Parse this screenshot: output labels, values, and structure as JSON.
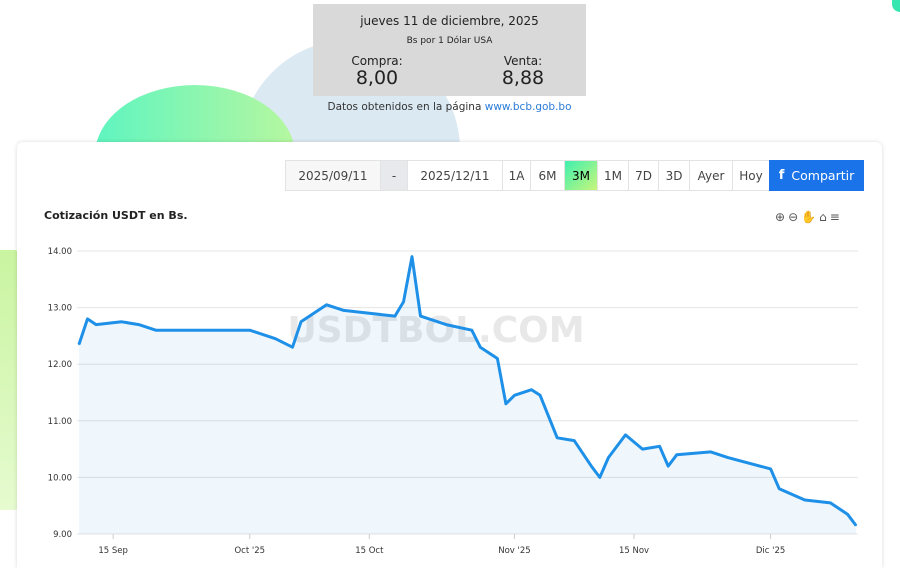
{
  "rate_box": {
    "date": "jueves 11 de diciembre, 2025",
    "subtitle": "Bs por 1 Dólar USA",
    "buy_label": "Compra:",
    "buy_value": "8,00",
    "sell_label": "Venta:",
    "sell_value": "8,88"
  },
  "source": {
    "text": "Datos obtenidos en la página ",
    "link": "www.bcb.gob.bo"
  },
  "toolbar": {
    "date_from": "2025/09/11",
    "separator": "-",
    "date_to": "2025/12/11",
    "ranges": [
      "1A",
      "6M",
      "3M",
      "1M",
      "7D",
      "3D",
      "Ayer",
      "Hoy"
    ],
    "active_range": "3M",
    "share_label": "Compartir",
    "share_icon": "facebook-icon",
    "colors": {
      "active": "#3ff0b0",
      "share": "#1a73e8"
    }
  },
  "chart_tools": [
    "zoom-in-icon",
    "zoom-out-icon",
    "pan-hand-icon",
    "home-icon",
    "menu-icon"
  ],
  "watermark": "USDTBOL.COM",
  "chart_data": {
    "type": "area",
    "title": "Cotización USDT en Bs.",
    "xlabel": "",
    "ylabel": "",
    "ylim": [
      9,
      14
    ],
    "yticks": [
      "9.00",
      "10.00",
      "11.00",
      "12.00",
      "13.00",
      "14.00"
    ],
    "xlim": [
      "2025-09-11",
      "2025-12-11"
    ],
    "xticks": [
      {
        "date": "2025-09-15",
        "label": "15 Sep"
      },
      {
        "date": "2025-10-01",
        "label": "Oct '25"
      },
      {
        "date": "2025-10-15",
        "label": "15 Oct"
      },
      {
        "date": "2025-11-01",
        "label": "Nov '25"
      },
      {
        "date": "2025-11-15",
        "label": "15 Nov"
      },
      {
        "date": "2025-12-01",
        "label": "Dic '25"
      }
    ],
    "grid": true,
    "line_color": "#1e90e8",
    "points": [
      [
        "2025-09-11",
        12.35
      ],
      [
        "2025-09-12",
        12.8
      ],
      [
        "2025-09-13",
        12.7
      ],
      [
        "2025-09-16",
        12.75
      ],
      [
        "2025-09-18",
        12.7
      ],
      [
        "2025-09-20",
        12.6
      ],
      [
        "2025-09-25",
        12.6
      ],
      [
        "2025-10-01",
        12.6
      ],
      [
        "2025-10-04",
        12.45
      ],
      [
        "2025-10-06",
        12.3
      ],
      [
        "2025-10-07",
        12.75
      ],
      [
        "2025-10-10",
        13.05
      ],
      [
        "2025-10-12",
        12.95
      ],
      [
        "2025-10-15",
        12.9
      ],
      [
        "2025-10-18",
        12.85
      ],
      [
        "2025-10-19",
        13.1
      ],
      [
        "2025-10-20",
        13.9
      ],
      [
        "2025-10-21",
        12.85
      ],
      [
        "2025-10-22",
        12.8
      ],
      [
        "2025-10-24",
        12.7
      ],
      [
        "2025-10-27",
        12.6
      ],
      [
        "2025-10-28",
        12.3
      ],
      [
        "2025-10-30",
        12.1
      ],
      [
        "2025-10-31",
        11.3
      ],
      [
        "2025-11-01",
        11.45
      ],
      [
        "2025-11-03",
        11.55
      ],
      [
        "2025-11-04",
        11.45
      ],
      [
        "2025-11-06",
        10.7
      ],
      [
        "2025-11-08",
        10.65
      ],
      [
        "2025-11-10",
        10.2
      ],
      [
        "2025-11-11",
        10.0
      ],
      [
        "2025-11-12",
        10.35
      ],
      [
        "2025-11-14",
        10.75
      ],
      [
        "2025-11-16",
        10.5
      ],
      [
        "2025-11-18",
        10.55
      ],
      [
        "2025-11-19",
        10.2
      ],
      [
        "2025-11-20",
        10.4
      ],
      [
        "2025-11-24",
        10.45
      ],
      [
        "2025-11-26",
        10.35
      ],
      [
        "2025-12-01",
        10.15
      ],
      [
        "2025-12-02",
        9.8
      ],
      [
        "2025-12-05",
        9.6
      ],
      [
        "2025-12-08",
        9.55
      ],
      [
        "2025-12-10",
        9.35
      ],
      [
        "2025-12-11",
        9.15
      ]
    ]
  }
}
